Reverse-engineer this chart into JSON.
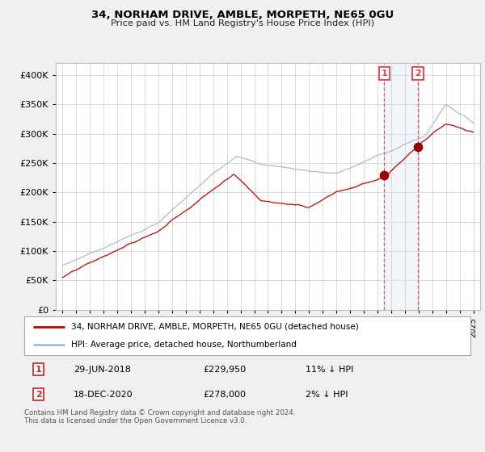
{
  "title": "34, NORHAM DRIVE, AMBLE, MORPETH, NE65 0GU",
  "subtitle": "Price paid vs. HM Land Registry's House Price Index (HPI)",
  "legend_house": "34, NORHAM DRIVE, AMBLE, MORPETH, NE65 0GU (detached house)",
  "legend_hpi": "HPI: Average price, detached house, Northumberland",
  "footnote": "Contains HM Land Registry data © Crown copyright and database right 2024.\nThis data is licensed under the Open Government Licence v3.0.",
  "transaction1_date": "29-JUN-2018",
  "transaction1_price": 229950,
  "transaction1_pct": "11% ↓ HPI",
  "transaction2_date": "18-DEC-2020",
  "transaction2_price": 278000,
  "transaction2_pct": "2% ↓ HPI",
  "t1": 2018.5,
  "t2": 2020.96,
  "house_color": "#cc0000",
  "hpi_color": "#aabbdd",
  "marker_color": "#990000",
  "vline_color": "#dd4444",
  "span_color": "#ccddf0",
  "background_color": "#f0f0f0",
  "plot_background": "#ffffff",
  "grid_color": "#cccccc",
  "ylim": [
    0,
    420000
  ],
  "yticks": [
    0,
    50000,
    100000,
    150000,
    200000,
    250000,
    300000,
    350000,
    400000
  ],
  "x_start_year": 1995,
  "x_end_year": 2025
}
